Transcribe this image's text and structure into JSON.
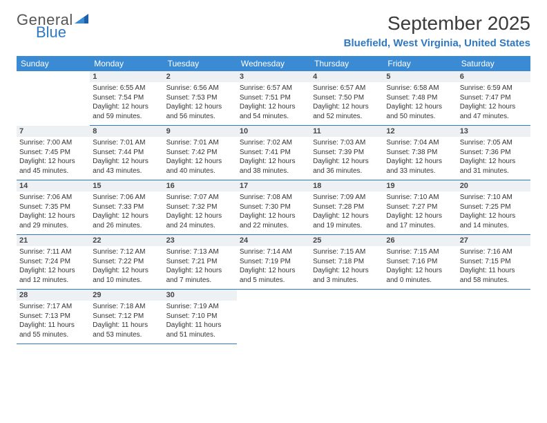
{
  "brand": {
    "general": "General",
    "blue": "Blue"
  },
  "title": "September 2025",
  "location": "Bluefield, West Virginia, United States",
  "theme": {
    "header_bg": "#3b8bd4",
    "accent": "#2f78c2",
    "daynum_bg": "#eef1f3",
    "text": "#333333",
    "page_bg": "#ffffff"
  },
  "fonts": {
    "title_size_pt": 21,
    "location_size_pt": 11,
    "dayhead_size_pt": 9,
    "daynum_size_pt": 8,
    "body_size_pt": 7.5
  },
  "day_names": [
    "Sunday",
    "Monday",
    "Tuesday",
    "Wednesday",
    "Thursday",
    "Friday",
    "Saturday"
  ],
  "weeks": [
    [
      null,
      {
        "n": "1",
        "sr": "6:55 AM",
        "ss": "7:54 PM",
        "dl": "12 hours and 59 minutes."
      },
      {
        "n": "2",
        "sr": "6:56 AM",
        "ss": "7:53 PM",
        "dl": "12 hours and 56 minutes."
      },
      {
        "n": "3",
        "sr": "6:57 AM",
        "ss": "7:51 PM",
        "dl": "12 hours and 54 minutes."
      },
      {
        "n": "4",
        "sr": "6:57 AM",
        "ss": "7:50 PM",
        "dl": "12 hours and 52 minutes."
      },
      {
        "n": "5",
        "sr": "6:58 AM",
        "ss": "7:48 PM",
        "dl": "12 hours and 50 minutes."
      },
      {
        "n": "6",
        "sr": "6:59 AM",
        "ss": "7:47 PM",
        "dl": "12 hours and 47 minutes."
      }
    ],
    [
      {
        "n": "7",
        "sr": "7:00 AM",
        "ss": "7:45 PM",
        "dl": "12 hours and 45 minutes."
      },
      {
        "n": "8",
        "sr": "7:01 AM",
        "ss": "7:44 PM",
        "dl": "12 hours and 43 minutes."
      },
      {
        "n": "9",
        "sr": "7:01 AM",
        "ss": "7:42 PM",
        "dl": "12 hours and 40 minutes."
      },
      {
        "n": "10",
        "sr": "7:02 AM",
        "ss": "7:41 PM",
        "dl": "12 hours and 38 minutes."
      },
      {
        "n": "11",
        "sr": "7:03 AM",
        "ss": "7:39 PM",
        "dl": "12 hours and 36 minutes."
      },
      {
        "n": "12",
        "sr": "7:04 AM",
        "ss": "7:38 PM",
        "dl": "12 hours and 33 minutes."
      },
      {
        "n": "13",
        "sr": "7:05 AM",
        "ss": "7:36 PM",
        "dl": "12 hours and 31 minutes."
      }
    ],
    [
      {
        "n": "14",
        "sr": "7:06 AM",
        "ss": "7:35 PM",
        "dl": "12 hours and 29 minutes."
      },
      {
        "n": "15",
        "sr": "7:06 AM",
        "ss": "7:33 PM",
        "dl": "12 hours and 26 minutes."
      },
      {
        "n": "16",
        "sr": "7:07 AM",
        "ss": "7:32 PM",
        "dl": "12 hours and 24 minutes."
      },
      {
        "n": "17",
        "sr": "7:08 AM",
        "ss": "7:30 PM",
        "dl": "12 hours and 22 minutes."
      },
      {
        "n": "18",
        "sr": "7:09 AM",
        "ss": "7:28 PM",
        "dl": "12 hours and 19 minutes."
      },
      {
        "n": "19",
        "sr": "7:10 AM",
        "ss": "7:27 PM",
        "dl": "12 hours and 17 minutes."
      },
      {
        "n": "20",
        "sr": "7:10 AM",
        "ss": "7:25 PM",
        "dl": "12 hours and 14 minutes."
      }
    ],
    [
      {
        "n": "21",
        "sr": "7:11 AM",
        "ss": "7:24 PM",
        "dl": "12 hours and 12 minutes."
      },
      {
        "n": "22",
        "sr": "7:12 AM",
        "ss": "7:22 PM",
        "dl": "12 hours and 10 minutes."
      },
      {
        "n": "23",
        "sr": "7:13 AM",
        "ss": "7:21 PM",
        "dl": "12 hours and 7 minutes."
      },
      {
        "n": "24",
        "sr": "7:14 AM",
        "ss": "7:19 PM",
        "dl": "12 hours and 5 minutes."
      },
      {
        "n": "25",
        "sr": "7:15 AM",
        "ss": "7:18 PM",
        "dl": "12 hours and 3 minutes."
      },
      {
        "n": "26",
        "sr": "7:15 AM",
        "ss": "7:16 PM",
        "dl": "12 hours and 0 minutes."
      },
      {
        "n": "27",
        "sr": "7:16 AM",
        "ss": "7:15 PM",
        "dl": "11 hours and 58 minutes."
      }
    ],
    [
      {
        "n": "28",
        "sr": "7:17 AM",
        "ss": "7:13 PM",
        "dl": "11 hours and 55 minutes."
      },
      {
        "n": "29",
        "sr": "7:18 AM",
        "ss": "7:12 PM",
        "dl": "11 hours and 53 minutes."
      },
      {
        "n": "30",
        "sr": "7:19 AM",
        "ss": "7:10 PM",
        "dl": "11 hours and 51 minutes."
      },
      null,
      null,
      null,
      null
    ]
  ],
  "labels": {
    "sunrise": "Sunrise:",
    "sunset": "Sunset:",
    "daylight": "Daylight:"
  }
}
